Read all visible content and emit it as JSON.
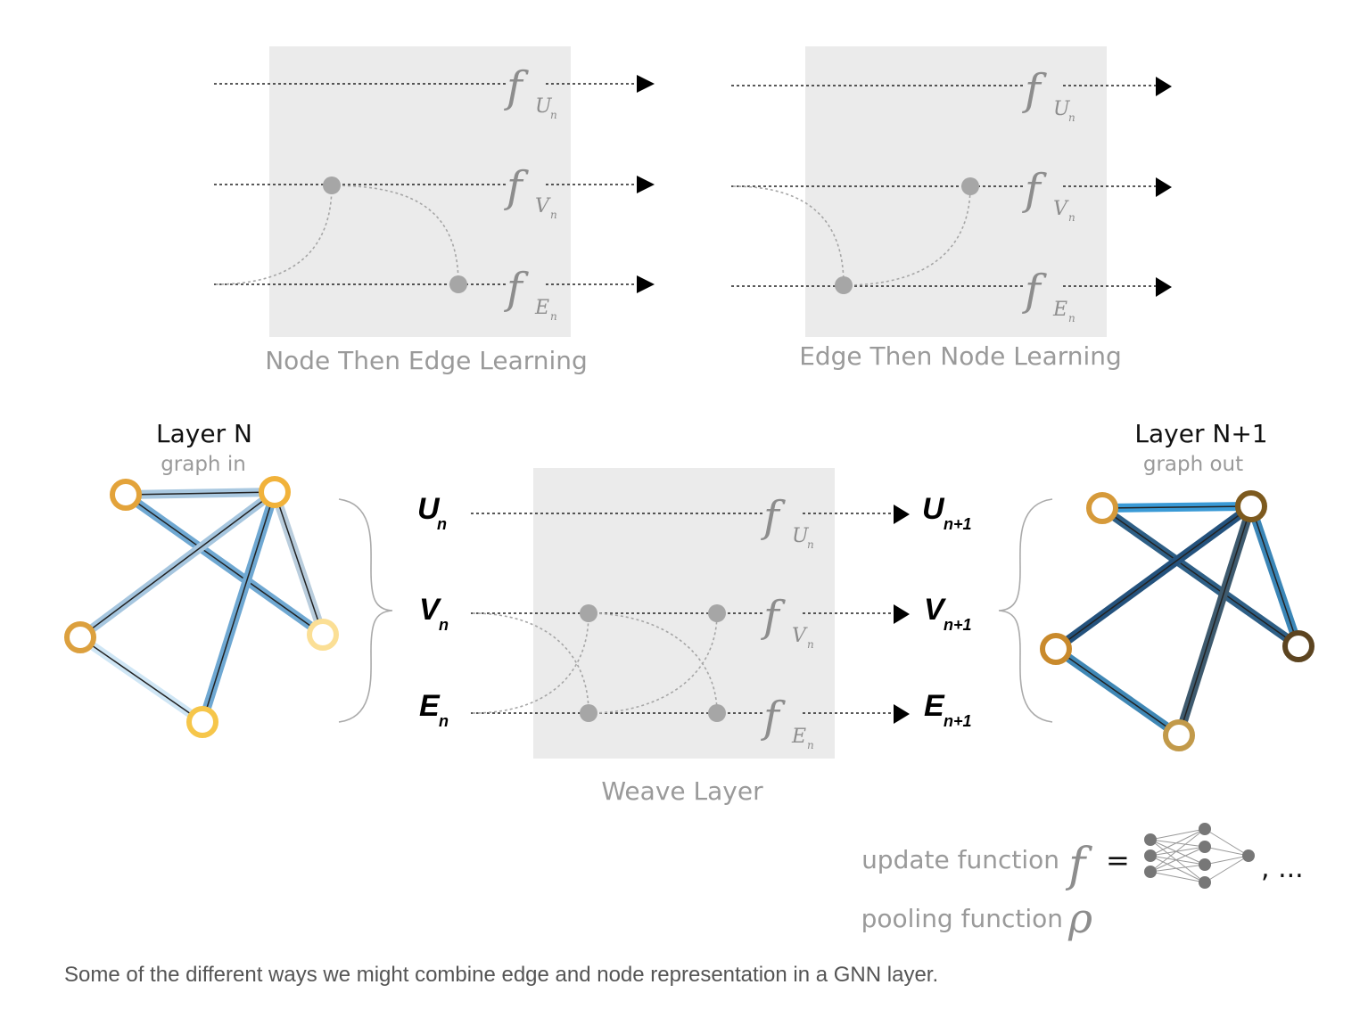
{
  "panels": {
    "node_then_edge": {
      "title": "Node Then Edge Learning"
    },
    "edge_then_node": {
      "title": "Edge Then Node Learning"
    },
    "weave": {
      "title": "Weave Layer"
    }
  },
  "functions": {
    "f": "f",
    "sub_u": "U",
    "sub_v": "V",
    "sub_e": "E",
    "sub_n": "n"
  },
  "inputs": {
    "u": "U",
    "v": "V",
    "e": "E",
    "sub": "n"
  },
  "outputs": {
    "u": "U",
    "v": "V",
    "e": "E",
    "sub": "n+1"
  },
  "graph_in": {
    "title": "Layer N",
    "subtitle": "graph in"
  },
  "graph_out": {
    "title": "Layer N+1",
    "subtitle": "graph out"
  },
  "legend": {
    "update_label": "update function",
    "f_symbol": "f",
    "equals": "=",
    "ellipsis": ", ...",
    "pooling_label": "pooling function",
    "rho_symbol": "ρ"
  },
  "caption": "Some of the different ways we might combine edge and node representation in a GNN layer.",
  "colors": {
    "panel_bg": "#ebebeb",
    "dot": "#a6a6a6",
    "in_edge": "#7fb2d8",
    "out_edge": "#2f6f9c",
    "node_orange": "#e3a33a"
  }
}
